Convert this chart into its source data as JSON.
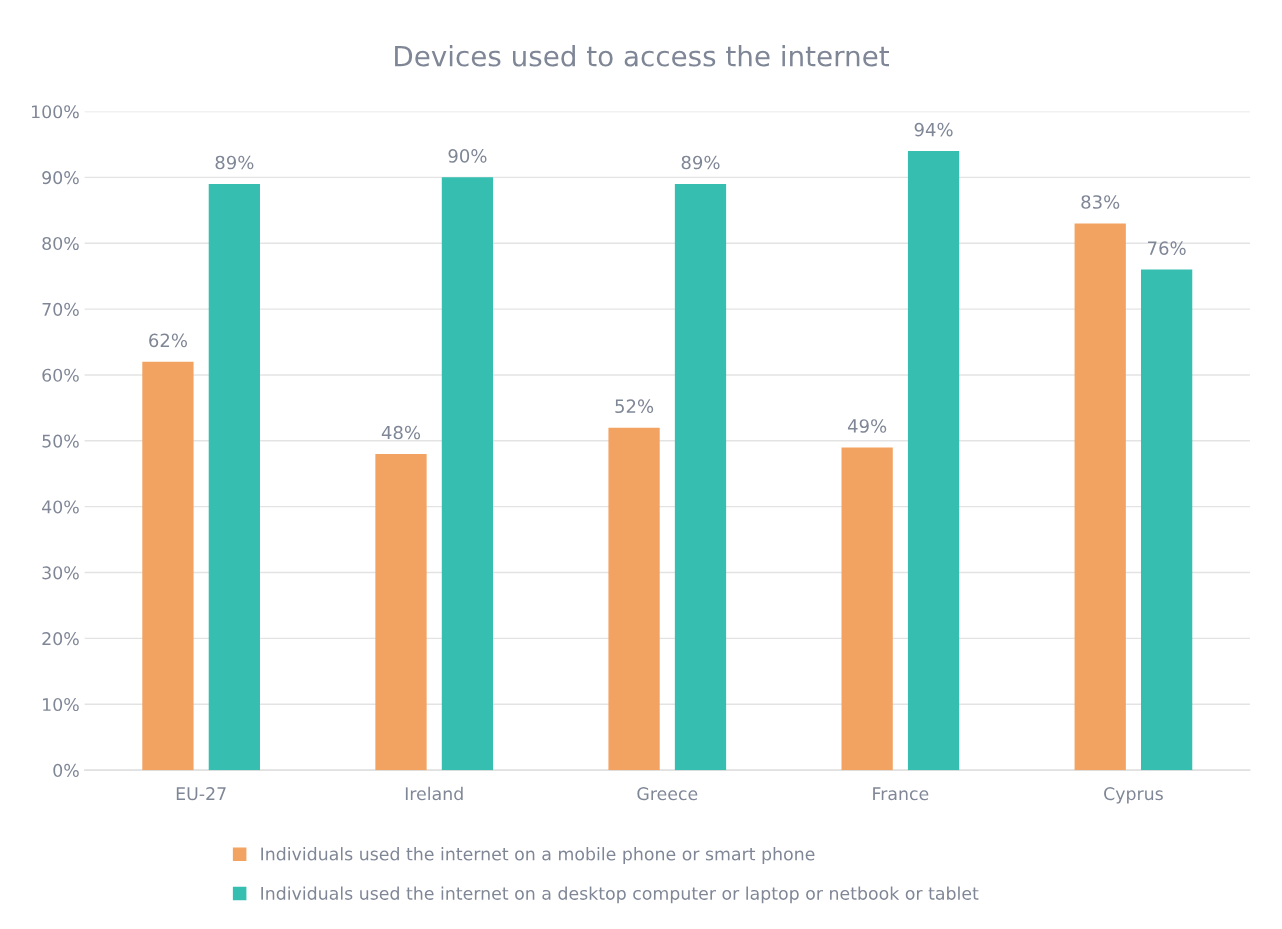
{
  "chart_data": {
    "type": "bar",
    "title": "Devices used to access the internet",
    "categories": [
      "EU-27",
      "Ireland",
      "Greece",
      "France",
      "Cyprus"
    ],
    "series": [
      {
        "name": "Individuals used the internet on a mobile phone or smart phone",
        "color": "#f3a361",
        "values": [
          62,
          48,
          52,
          49,
          83
        ],
        "value_labels": [
          "62%",
          "48%",
          "52%",
          "49%",
          "83%"
        ]
      },
      {
        "name": "Individuals used the internet on a desktop computer or laptop or netbook or tablet",
        "color": "#36bfb0",
        "values": [
          89,
          90,
          89,
          94,
          76
        ],
        "value_labels": [
          "89%",
          "90%",
          "89%",
          "94%",
          "76%"
        ]
      }
    ],
    "ylim": [
      0,
      100
    ],
    "yticks": [
      {
        "value": 0,
        "label": "0%"
      },
      {
        "value": 10,
        "label": "10%"
      },
      {
        "value": 20,
        "label": "20%"
      },
      {
        "value": 30,
        "label": "30%"
      },
      {
        "value": 40,
        "label": "40%"
      },
      {
        "value": 50,
        "label": "50%"
      },
      {
        "value": 60,
        "label": "60%"
      },
      {
        "value": 70,
        "label": "70%"
      },
      {
        "value": 80,
        "label": "80%"
      },
      {
        "value": 90,
        "label": "90%"
      },
      {
        "value": 100,
        "label": "100%"
      }
    ],
    "grid": "y",
    "legend": "bottom"
  }
}
